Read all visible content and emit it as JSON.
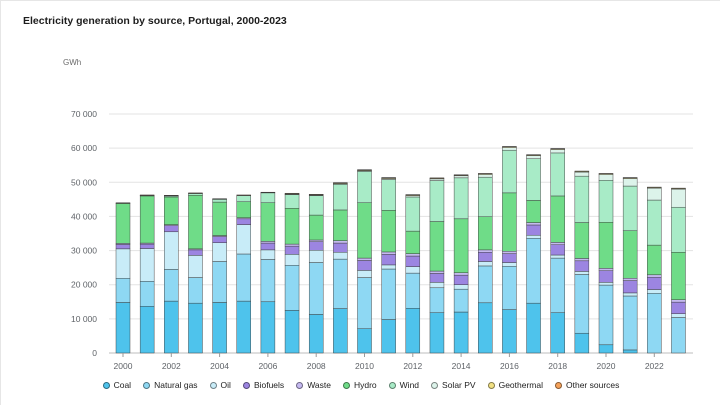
{
  "page": {
    "title": "Electricity generation by source, Portugal, 2000-2023",
    "unit_label": "GWh"
  },
  "chart_data": {
    "type": "bar",
    "stacked": true,
    "title": "Electricity generation by source, Portugal, 2000-2023",
    "ylabel": "GWh",
    "xlabel": "",
    "ylim": [
      0,
      70000
    ],
    "y_ticks": [
      0,
      10000,
      20000,
      30000,
      40000,
      50000,
      60000,
      70000
    ],
    "y_tick_labels": [
      "0",
      "10 000",
      "20 000",
      "30 000",
      "40 000",
      "50 000",
      "60 000",
      "70 000"
    ],
    "x_tick_labels": [
      "2000",
      "2002",
      "2004",
      "2006",
      "2008",
      "2010",
      "2012",
      "2014",
      "2016",
      "2018",
      "2020",
      "2022"
    ],
    "grid": true,
    "legend_position": "bottom",
    "categories": [
      "2000",
      "2001",
      "2002",
      "2003",
      "2004",
      "2005",
      "2006",
      "2007",
      "2008",
      "2009",
      "2010",
      "2011",
      "2012",
      "2013",
      "2014",
      "2015",
      "2016",
      "2017",
      "2018",
      "2019",
      "2020",
      "2021",
      "2022",
      "2023"
    ],
    "series": [
      {
        "name": "Coal",
        "color": "#4ec3ec",
        "values": [
          14800,
          13700,
          15200,
          14600,
          14800,
          15200,
          15000,
          12500,
          11300,
          13000,
          7100,
          9800,
          13100,
          11800,
          12000,
          14700,
          12700,
          14600,
          11800,
          5800,
          2400,
          900,
          0,
          0
        ]
      },
      {
        "name": "Natural gas",
        "color": "#8ed8f3",
        "values": [
          7100,
          7300,
          9300,
          7500,
          12000,
          13800,
          12400,
          13200,
          15200,
          14500,
          15000,
          14800,
          10300,
          7300,
          6700,
          10800,
          12700,
          19000,
          16000,
          17200,
          17500,
          15800,
          17500,
          10400
        ]
      },
      {
        "name": "Oil",
        "color": "#c8ecf8",
        "values": [
          8600,
          9600,
          11000,
          6500,
          5500,
          8600,
          2800,
          3200,
          3600,
          2000,
          2100,
          1200,
          1900,
          1600,
          1300,
          1300,
          1100,
          900,
          900,
          900,
          800,
          900,
          1100,
          1100
        ]
      },
      {
        "name": "Biofuels",
        "color": "#9c85e1",
        "values": [
          1300,
          1300,
          1800,
          1600,
          1800,
          1700,
          2000,
          2400,
          2500,
          2700,
          2900,
          3100,
          3100,
          2600,
          2800,
          2700,
          2600,
          3000,
          3000,
          3100,
          3400,
          3600,
          3600,
          3400
        ]
      },
      {
        "name": "Waste",
        "color": "#c5b9f0",
        "values": [
          300,
          300,
          300,
          300,
          300,
          300,
          500,
          600,
          500,
          700,
          700,
          700,
          700,
          700,
          700,
          700,
          700,
          700,
          700,
          700,
          700,
          700,
          700,
          700
        ]
      },
      {
        "name": "Hydro",
        "color": "#6fdc88",
        "values": [
          11700,
          13800,
          8100,
          15700,
          9800,
          4700,
          11300,
          10500,
          7300,
          9000,
          16200,
          12200,
          6600,
          14500,
          15800,
          9700,
          17100,
          6500,
          13600,
          10500,
          13500,
          13900,
          8700,
          13900
        ]
      },
      {
        "name": "Wind",
        "color": "#a8ebc7",
        "values": [
          0,
          100,
          300,
          500,
          800,
          1800,
          2900,
          4000,
          5700,
          7500,
          9200,
          9000,
          10000,
          12000,
          12000,
          11600,
          12500,
          12200,
          12600,
          13600,
          12300,
          13100,
          13200,
          13200
        ]
      },
      {
        "name": "Solar PV",
        "color": "#dcf3ea",
        "values": [
          0,
          0,
          0,
          0,
          0,
          0,
          0,
          100,
          100,
          200,
          200,
          300,
          400,
          500,
          600,
          800,
          800,
          900,
          1000,
          1200,
          1700,
          2200,
          3500,
          5300
        ]
      },
      {
        "name": "Geothermal",
        "color": "#f2e183",
        "values": [
          100,
          100,
          100,
          100,
          100,
          100,
          100,
          200,
          200,
          200,
          200,
          200,
          200,
          200,
          200,
          200,
          200,
          200,
          200,
          200,
          200,
          200,
          200,
          200
        ]
      },
      {
        "name": "Other sources",
        "color": "#f6a25a",
        "values": [
          100,
          100,
          100,
          100,
          100,
          100,
          100,
          100,
          100,
          100,
          100,
          100,
          100,
          100,
          100,
          100,
          100,
          100,
          100,
          100,
          100,
          100,
          100,
          100
        ]
      }
    ]
  }
}
